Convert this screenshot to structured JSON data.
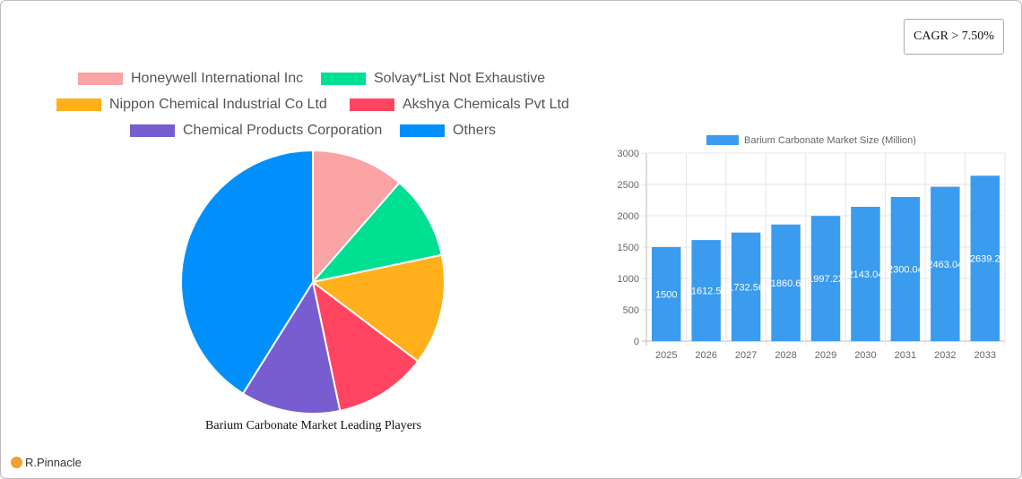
{
  "cagr_label": "CAGR > 7.50%",
  "brand": "R.Pinnacle",
  "chart_data": [
    {
      "type": "pie",
      "title": "Barium Carbonate Market Leading Players",
      "legend_position": "top",
      "slices": [
        {
          "name": "Honeywell International Inc",
          "value": 11.4,
          "color": "#f9a3a4"
        },
        {
          "name": "Solvay*List Not Exhaustive",
          "value": 10.3,
          "color": "#00e092"
        },
        {
          "name": "Nippon Chemical Industrial Co  Ltd",
          "value": 13.6,
          "color": "#ffb01a"
        },
        {
          "name": "Akshya Chemicals Pvt Ltd",
          "value": 11.4,
          "color": "#ff4560"
        },
        {
          "name": "Chemical Products Corporation",
          "value": 12.2,
          "color": "#775dd0"
        },
        {
          "name": "Others",
          "value": 41.1,
          "color": "#008ffb"
        }
      ]
    },
    {
      "type": "bar",
      "legend_position": "top",
      "grid": true,
      "series": [
        {
          "name": "Barium Carbonate Market Size (Million)",
          "color": "#3a9bef",
          "values": [
            1500,
            1612.5,
            1732.56,
            1860.65,
            1997.23,
            2143.04,
            2300.04,
            2463.04,
            2639.2
          ],
          "labels": [
            "1500",
            "1612.5",
            "1732.56",
            "1860.6",
            "1997.23",
            "2143.04",
            "2300.04",
            "2463.04",
            "2639.2"
          ]
        }
      ],
      "categories": [
        "2025",
        "2026",
        "2027",
        "2028",
        "2029",
        "2030",
        "2031",
        "2032",
        "2033"
      ],
      "ylim": [
        0,
        3000
      ],
      "yticks": [
        "0",
        "500",
        "1000",
        "1500",
        "2000",
        "2500",
        "3000"
      ]
    }
  ]
}
